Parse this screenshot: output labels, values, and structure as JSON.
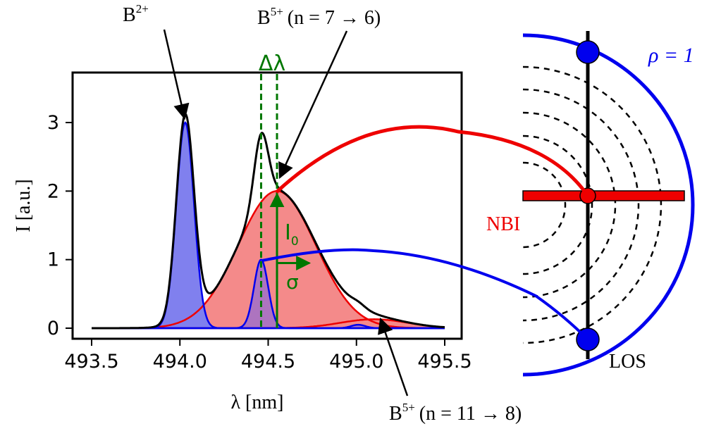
{
  "figure": {
    "labels": {
      "b2": "B",
      "b2_sup": "2+",
      "b5_top": "B",
      "b5_top_sup": "5+",
      "b5_top_transition": "(n = 7 → 6)",
      "b5_bottom": "B",
      "b5_bottom_sup": "5+",
      "b5_bottom_transition": "(n = 11 → 8)",
      "delta_lambda": "Δλ",
      "i0": "I",
      "i0_sub": "0",
      "sigma": "σ",
      "rho": "ρ = 1",
      "nbi": "NBI",
      "los": "LOS"
    },
    "colors": {
      "blue": "#0000ee",
      "red": "#ee0000",
      "green": "#007700",
      "blue_fill": "#8080ee",
      "red_fill": "#f48a8a",
      "purple_fill": "#a070c8"
    }
  },
  "chart_data": {
    "type": "line",
    "xlabel": "λ [nm]",
    "ylabel": "I [a.u.]",
    "xlim": [
      493.5,
      495.5
    ],
    "ylim": [
      -0.1,
      3.75
    ],
    "xticks": [
      "493.5",
      "494.0",
      "494.5",
      "495.0",
      "495.5"
    ],
    "yticks": [
      "0",
      "1",
      "2",
      "3"
    ],
    "series": [
      {
        "name": "B2+",
        "model": "gaussian",
        "center": 494.03,
        "amplitude": 3.0,
        "sigma": 0.05
      },
      {
        "name": "B5+ (n = 7 → 6)",
        "model": "gaussian",
        "center": 494.55,
        "amplitude": 2.0,
        "sigma": 0.22
      },
      {
        "name": "B5+ (n = 11 → 8)",
        "model": "gaussian",
        "center": 495.1,
        "amplitude": 0.13,
        "sigma": 0.19
      },
      {
        "name": "",
        "model": "gaussian",
        "center": 494.46,
        "amplitude": 1.0,
        "sigma": 0.04
      },
      {
        "name": "",
        "model": "gaussian",
        "center": 495.01,
        "amplitude": 0.05,
        "sigma": 0.04
      }
    ],
    "markers": {
      "delta_lambda_x": [
        494.46,
        494.55
      ],
      "i0_x": 494.55,
      "i0_y": 2.0
    }
  }
}
